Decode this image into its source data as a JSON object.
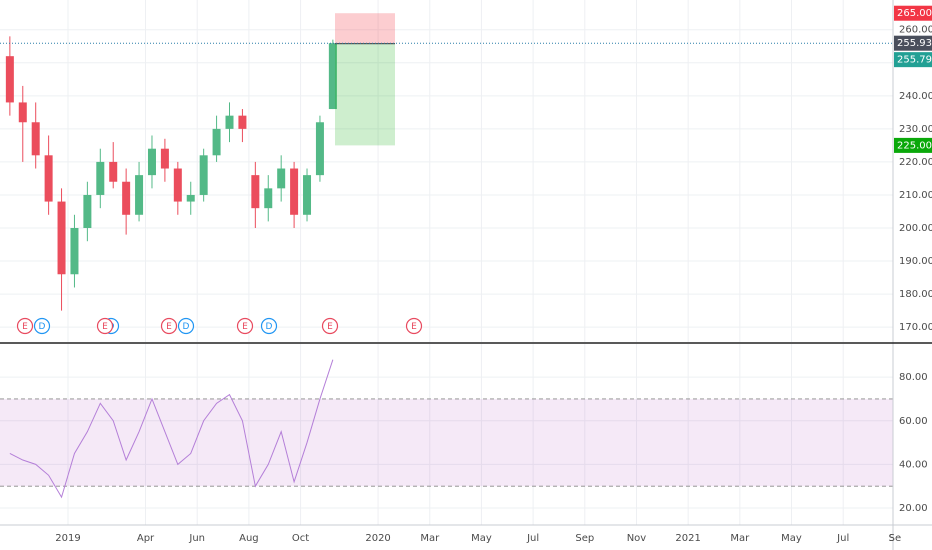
{
  "chart_data": [
    {
      "type": "candlestick",
      "categories": [
        null,
        null,
        null,
        null,
        null,
        "2019",
        null,
        null,
        null,
        null,
        null,
        "Apr",
        null,
        null,
        null,
        "Jun",
        null,
        null,
        null,
        "Aug",
        null,
        null,
        null,
        "Oct",
        null,
        null,
        null,
        null,
        null,
        "2020",
        null,
        null,
        null,
        "Mar",
        null,
        null,
        null,
        "May",
        null,
        null,
        null,
        "Jul",
        null,
        null,
        null,
        "Sep",
        null,
        null,
        null,
        "Nov",
        null,
        null,
        null,
        "2021",
        null,
        null,
        null,
        "Mar",
        null,
        null,
        null,
        "May",
        null,
        null,
        null,
        "Jul",
        null,
        null,
        null,
        "Se"
      ],
      "open": [
        252,
        238,
        232,
        222,
        208,
        186,
        200,
        210,
        220,
        214,
        204,
        216,
        224,
        218,
        208,
        210,
        222,
        230,
        234,
        216,
        206,
        212,
        218,
        204,
        216,
        236,
        null,
        null,
        null,
        null,
        null,
        null,
        null,
        null,
        null,
        null,
        null,
        null,
        null,
        null,
        null,
        null,
        null,
        null,
        null,
        null,
        null,
        null,
        null,
        null,
        null,
        null,
        null,
        null,
        null,
        null,
        null,
        null,
        null,
        null,
        null,
        null,
        null,
        null,
        null,
        null,
        null,
        null,
        null,
        null
      ],
      "high": [
        258,
        243,
        238,
        228,
        212,
        204,
        214,
        224,
        226,
        218,
        220,
        228,
        227,
        220,
        214,
        224,
        234,
        238,
        236,
        220,
        216,
        222,
        220,
        218,
        234,
        257,
        null,
        null,
        null,
        null,
        null,
        null,
        null,
        null,
        null,
        null,
        null,
        null,
        null,
        null,
        null,
        null,
        null,
        null,
        null,
        null,
        null,
        null,
        null,
        null,
        null,
        null,
        null,
        null,
        null,
        null,
        null,
        null,
        null,
        null,
        null,
        null,
        null,
        null,
        null,
        null,
        null,
        null,
        null,
        null
      ],
      "low": [
        234,
        220,
        218,
        204,
        175,
        182,
        196,
        206,
        212,
        198,
        202,
        212,
        214,
        204,
        204,
        208,
        220,
        226,
        226,
        200,
        202,
        208,
        200,
        202,
        214,
        236,
        null,
        null,
        null,
        null,
        null,
        null,
        null,
        null,
        null,
        null,
        null,
        null,
        null,
        null,
        null,
        null,
        null,
        null,
        null,
        null,
        null,
        null,
        null,
        null,
        null,
        null,
        null,
        null,
        null,
        null,
        null,
        null,
        null,
        null,
        null,
        null,
        null,
        null,
        null,
        null,
        null,
        null,
        null,
        null
      ],
      "close": [
        238,
        232,
        222,
        208,
        186,
        200,
        210,
        220,
        214,
        204,
        216,
        224,
        218,
        208,
        210,
        222,
        230,
        234,
        230,
        206,
        212,
        218,
        204,
        216,
        232,
        255.93,
        null,
        null,
        null,
        null,
        null,
        null,
        null,
        null,
        null,
        null,
        null,
        null,
        null,
        null,
        null,
        null,
        null,
        null,
        null,
        null,
        null,
        null,
        null,
        null,
        null,
        null,
        null,
        null,
        null,
        null,
        null,
        null,
        null,
        null,
        null,
        null,
        null,
        null,
        null,
        null,
        null,
        null,
        null,
        null
      ],
      "up_color": "#53b987",
      "down_color": "#eb4d5c",
      "ylim": [
        165.5,
        269
      ],
      "yticks": [
        {
          "value": 170,
          "label": "170.00"
        },
        {
          "value": 180,
          "label": "180.00"
        },
        {
          "value": 190,
          "label": "190.00"
        },
        {
          "value": 200,
          "label": "200.00"
        },
        {
          "value": 210,
          "label": "210.00"
        },
        {
          "value": 220,
          "label": "220.00"
        },
        {
          "value": 230,
          "label": "230.00"
        },
        {
          "value": 240,
          "label": "240.00"
        },
        {
          "value": 250,
          "label": "250.00"
        },
        {
          "value": 260,
          "label": "260.00"
        }
      ],
      "grid": true,
      "last_price": {
        "value": 255.93,
        "label": "255.93",
        "color": "#4a4f5c"
      },
      "position": {
        "stop": {
          "value": 265,
          "label": "265.00",
          "color": "#f23645"
        },
        "entry": {
          "value": 255.79,
          "label": "255.79",
          "color": "#22a094"
        },
        "target": {
          "value": 225,
          "label": "225.00",
          "color": "#0aa80a"
        }
      },
      "event_markers": [
        "E",
        "D",
        "E",
        "D",
        "E",
        "D",
        "E",
        "D",
        "E",
        "E"
      ]
    },
    {
      "type": "line",
      "series": [
        {
          "color": "#b47fd8",
          "values": [
            45,
            42,
            40,
            35,
            25,
            45,
            55,
            68,
            60,
            42,
            55,
            70,
            55,
            40,
            45,
            60,
            68,
            72,
            60,
            30,
            40,
            55,
            32,
            50,
            70,
            88,
            null,
            null,
            null,
            null,
            null,
            null,
            null,
            null,
            null,
            null,
            null,
            null,
            null,
            null,
            null,
            null,
            null,
            null,
            null,
            null,
            null,
            null,
            null,
            null,
            null,
            null,
            null,
            null,
            null,
            null,
            null,
            null,
            null,
            null,
            null,
            null,
            null,
            null,
            null,
            null,
            null,
            null,
            null,
            null
          ]
        }
      ],
      "ylim": [
        12.2,
        95.2
      ],
      "yticks": [
        {
          "value": 20,
          "label": "20.00"
        },
        {
          "value": 40,
          "label": "40.00"
        },
        {
          "value": 60,
          "label": "60.00"
        },
        {
          "value": 80,
          "label": "80.00"
        }
      ],
      "band": [
        30,
        70
      ],
      "band_color": "#9c27b0"
    }
  ]
}
